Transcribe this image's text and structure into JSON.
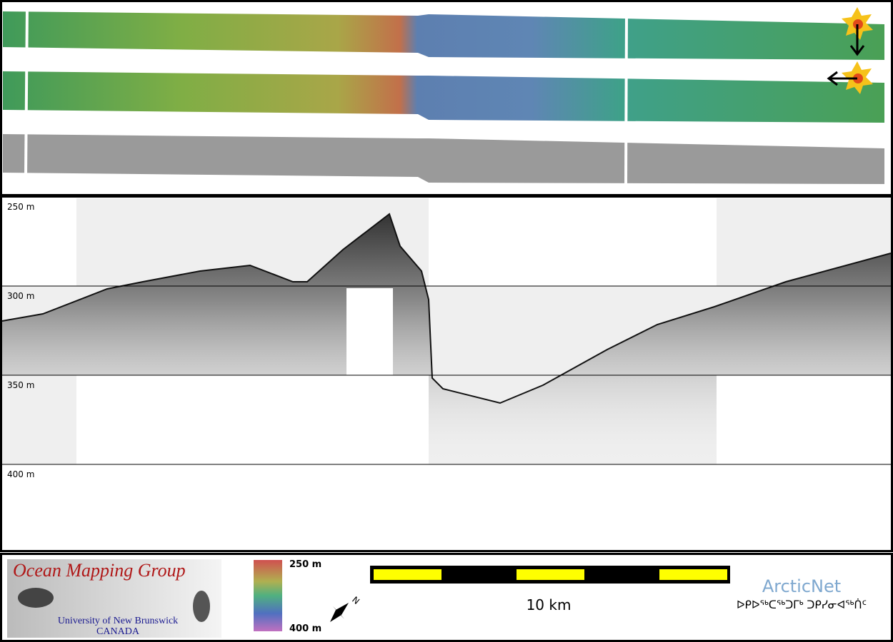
{
  "profile": {
    "depth_labels": [
      "250 m",
      "300 m",
      "350 m",
      "400 m"
    ]
  },
  "footer": {
    "logo": {
      "title": "Ocean Mapping Group",
      "institution": "University of New Brunswick",
      "country": "CANADA"
    },
    "colorbar": {
      "top_label": "250 m",
      "bottom_label": "400 m"
    },
    "north_arrow": "N",
    "scale_bar": {
      "label": "10 km"
    },
    "partner": {
      "name": "ArcticNet",
      "subtitle": "ᐅᑭᐅᖅᑕᖅᑐᒥᒃ ᑐᑭᓯᓂᐊᖅᑏᑦ"
    }
  }
}
